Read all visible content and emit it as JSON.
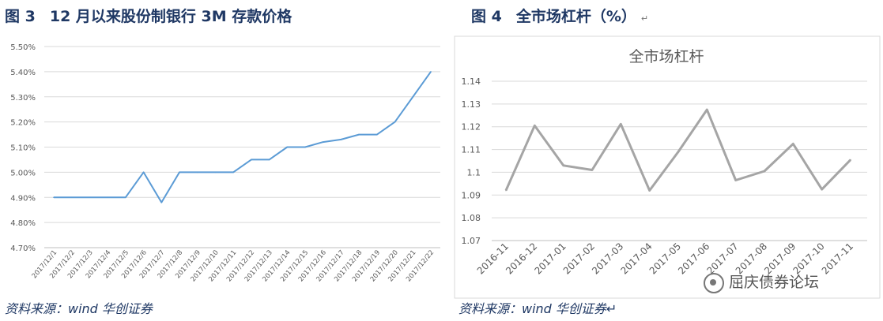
{
  "figures": {
    "left": {
      "title_num": "图 3",
      "title_text": "12 月以来股份制银行 3M 存款价格",
      "source": "资料来源：wind 华创证券"
    },
    "right": {
      "title_num": "图 4",
      "title_text": "全市场杠杆（%）",
      "para_mark": "↵",
      "source": "资料来源：wind 华创证券↵"
    }
  },
  "watermark": {
    "text": "屈庆债券论坛",
    "icon": "wechat-logo-icon"
  },
  "chart_data": [
    {
      "type": "line",
      "title": "",
      "xlabel": "",
      "ylabel": "",
      "color": "#5b9bd5",
      "grid": true,
      "legend": "none",
      "ylim": [
        4.7,
        5.5
      ],
      "yticks": [
        "4.70%",
        "4.80%",
        "4.90%",
        "5.00%",
        "5.10%",
        "5.20%",
        "5.30%",
        "5.40%",
        "5.50%"
      ],
      "categories": [
        "2017/12/1",
        "2017/12/2",
        "2017/12/3",
        "2017/12/4",
        "2017/12/5",
        "2017/12/6",
        "2017/12/7",
        "2017/12/8",
        "2017/12/9",
        "2017/12/10",
        "2017/12/11",
        "2017/12/12",
        "2017/12/13",
        "2017/12/14",
        "2017/12/15",
        "2017/12/16",
        "2017/12/17",
        "2017/12/18",
        "2017/12/19",
        "2017/12/20",
        "2017/12/21",
        "2017/12/22"
      ],
      "values": [
        4.9,
        4.9,
        4.9,
        4.9,
        4.9,
        5.0,
        4.88,
        5.0,
        5.0,
        5.0,
        5.0,
        5.05,
        5.05,
        5.1,
        5.1,
        5.12,
        5.13,
        5.15,
        5.15,
        5.2,
        5.3,
        5.4
      ]
    },
    {
      "type": "line",
      "title": "全市场杠杆",
      "xlabel": "",
      "ylabel": "",
      "color": "#a5a5a5",
      "grid": true,
      "legend": "none",
      "ylim": [
        1.07,
        1.14
      ],
      "yticks": [
        "1.07",
        "1.08",
        "1.09",
        "1.1",
        "1.11",
        "1.12",
        "1.13",
        "1.14"
      ],
      "categories": [
        "2016-11",
        "2016-12",
        "2017-01",
        "2017-02",
        "2017-03",
        "2017-04",
        "2017-05",
        "2017-06",
        "2017-07",
        "2017-08",
        "2017-09",
        "2017-10",
        "2017-11"
      ],
      "values": [
        1.092,
        1.1205,
        1.103,
        1.101,
        1.1212,
        1.092,
        1.109,
        1.1275,
        1.0965,
        1.1005,
        1.1125,
        1.0925,
        1.1055
      ]
    }
  ]
}
